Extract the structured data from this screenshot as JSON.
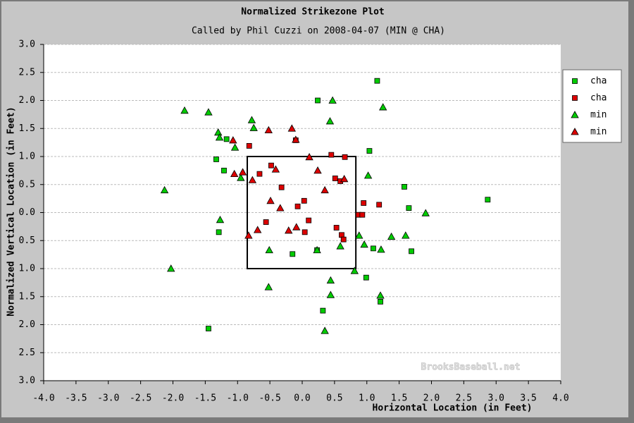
{
  "chart_data": {
    "type": "scatter",
    "title": "Normalized Strikezone Plot",
    "subtitle": "Called by Phil Cuzzi on 2008-04-07 (MIN @ CHA)",
    "x_label": "Horizontal Location (in Feet)",
    "y_label": "Normalized Vertical Location (in Feet)",
    "watermark": "BrooksBaseball.net",
    "xlim": [
      -4,
      4
    ],
    "ylim": [
      -3,
      3
    ],
    "grid": true,
    "legend": "right",
    "xticks": [
      {
        "value": -4,
        "label": "-4.0"
      },
      {
        "value": -3.5,
        "label": "-3.5"
      },
      {
        "value": -3,
        "label": "-3.0"
      },
      {
        "value": -2.5,
        "label": "-2.5"
      },
      {
        "value": -2,
        "label": "-2.0"
      },
      {
        "value": -1.5,
        "label": "-1.5"
      },
      {
        "value": -1,
        "label": "-1.0"
      },
      {
        "value": -0.5,
        "label": "-0.5"
      },
      {
        "value": 0,
        "label": "0.0"
      },
      {
        "value": 0.5,
        "label": "0.5"
      },
      {
        "value": 1,
        "label": "1.0"
      },
      {
        "value": 1.5,
        "label": "1.5"
      },
      {
        "value": 2,
        "label": "2.0"
      },
      {
        "value": 2.5,
        "label": "2.5"
      },
      {
        "value": 3,
        "label": "3.0"
      },
      {
        "value": 3.5,
        "label": "3.5"
      },
      {
        "value": 4,
        "label": "4.0"
      }
    ],
    "yticks": [
      {
        "value": 3,
        "label": "3.0"
      },
      {
        "value": 2.5,
        "label": "2.5"
      },
      {
        "value": 2,
        "label": "2.0"
      },
      {
        "value": 1.5,
        "label": "1.5"
      },
      {
        "value": 1,
        "label": "1.0"
      },
      {
        "value": 0.5,
        "label": "0.5"
      },
      {
        "value": 0,
        "label": "0.0"
      },
      {
        "value": -0.5,
        "label": "0.5"
      },
      {
        "value": -1,
        "label": "1.0"
      },
      {
        "value": -1.5,
        "label": "1.5"
      },
      {
        "value": -2,
        "label": "2.0"
      },
      {
        "value": -2.5,
        "label": "2.5"
      },
      {
        "value": -3,
        "label": "3.0"
      }
    ],
    "strike_zone": {
      "x": [
        -0.85,
        0.83
      ],
      "y": [
        -1.0,
        1.0
      ]
    },
    "series": [
      {
        "name": "cha",
        "marker": "square",
        "color": "#00cc00",
        "x": [
          1.16,
          0.24,
          1.04,
          -1.17,
          -1.33,
          -1.21,
          1.58,
          1.65,
          2.87,
          -1.29,
          -0.15,
          0.23,
          1.1,
          1.69,
          0.99,
          0.32,
          1.21,
          -1.45
        ],
        "values": [
          2.35,
          2.0,
          1.1,
          1.31,
          0.95,
          0.75,
          0.46,
          0.08,
          0.23,
          -0.35,
          -0.74,
          -0.67,
          -0.64,
          -0.69,
          -1.16,
          -1.75,
          -1.59,
          -2.07
        ]
      },
      {
        "name": "cha",
        "marker": "square",
        "color": "#dd0000",
        "x": [
          -0.82,
          -0.1,
          0.45,
          -0.48,
          -0.66,
          0.66,
          -0.32,
          0.51,
          0.59,
          0.95,
          1.19,
          0.03,
          -0.07,
          -0.56,
          0.1,
          0.53,
          0.87,
          0.93,
          0.04,
          0.61,
          0.64
        ],
        "values": [
          1.19,
          1.29,
          1.03,
          0.84,
          0.69,
          0.99,
          0.45,
          0.61,
          0.56,
          0.17,
          0.14,
          0.21,
          0.11,
          -0.17,
          -0.14,
          -0.27,
          -0.04,
          -0.04,
          -0.35,
          -0.4,
          -0.48
        ]
      },
      {
        "name": "min",
        "marker": "triangle",
        "color": "#00cc00",
        "x": [
          -1.82,
          -1.45,
          0.47,
          1.25,
          0.43,
          -0.78,
          -0.75,
          -1.3,
          -1.28,
          -1.04,
          -0.95,
          1.02,
          -2.13,
          1.91,
          -1.27,
          -0.51,
          0.23,
          0.59,
          0.88,
          0.96,
          1.22,
          1.38,
          1.6,
          -2.03,
          0.81,
          0.44,
          -0.52,
          0.44,
          1.21,
          0.35
        ],
        "values": [
          1.82,
          1.79,
          2.0,
          1.88,
          1.63,
          1.65,
          1.51,
          1.43,
          1.34,
          1.16,
          0.62,
          0.66,
          0.4,
          -0.01,
          -0.13,
          -0.67,
          -0.67,
          -0.6,
          -0.41,
          -0.57,
          -0.66,
          -0.43,
          -0.41,
          -1.0,
          -1.04,
          -1.21,
          -1.33,
          -1.47,
          -1.48,
          -2.11
        ]
      },
      {
        "name": "min",
        "marker": "triangle",
        "color": "#dd0000",
        "x": [
          -0.52,
          -0.16,
          -1.07,
          -0.1,
          0.11,
          -0.41,
          0.24,
          -0.92,
          -1.05,
          -0.77,
          0.65,
          0.35,
          -0.49,
          -0.34,
          -0.69,
          -0.21,
          -0.09,
          -0.83
        ],
        "values": [
          1.47,
          1.5,
          1.29,
          1.3,
          0.99,
          0.77,
          0.75,
          0.72,
          0.69,
          0.58,
          0.6,
          0.4,
          0.21,
          0.08,
          -0.31,
          -0.32,
          -0.26,
          -0.41
        ]
      }
    ]
  }
}
